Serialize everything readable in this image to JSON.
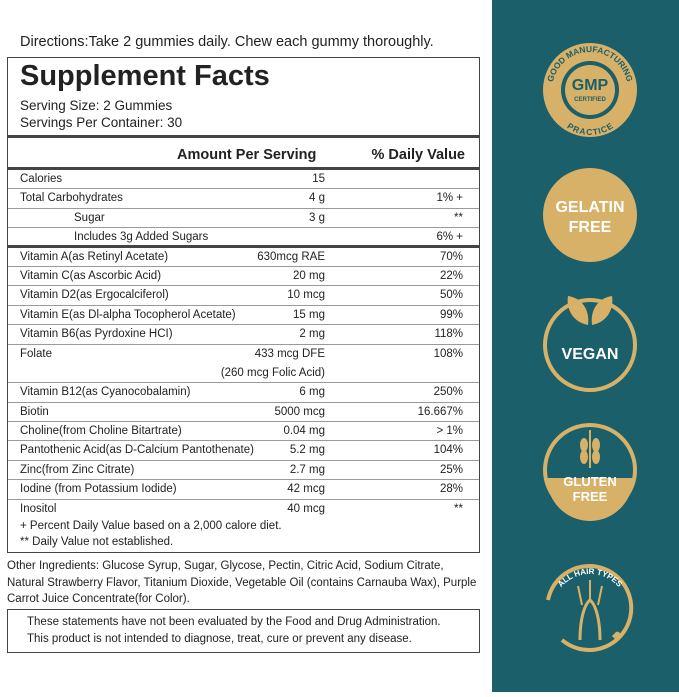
{
  "directions": "Directions:Take 2 gummies daily. Chew each gummy thoroughly.",
  "facts": {
    "title": "Supplement Facts",
    "serving_size": "Serving Size: 2 Gummies",
    "servings_per_container": "Servings Per Container: 30",
    "header_amount": "Amount Per Serving",
    "header_dv": "% Daily Value",
    "rows": [
      {
        "name": "Calories",
        "amount": "15"
      },
      {
        "name": "Total Carbohydrates",
        "amount": "4 g",
        "dv": "1%  +"
      },
      {
        "name": "Sugar",
        "amount": "3 g",
        "dv": "**"
      },
      {
        "name": "Includes 3g Added Sugars",
        "dv": "6% +"
      },
      {
        "name": "Vitamin A(as Retinyl Acetate)",
        "amount": "630mcg RAE",
        "dv": "70%"
      },
      {
        "name": "Vitamin C(as Ascorbic Acid)",
        "amount": "20 mg",
        "dv": "22%"
      },
      {
        "name": "Vitamin D2(as Ergocalciferol)",
        "amount": "10 mcg",
        "dv": "50%"
      },
      {
        "name": "Vitamin E(as Dl-alpha Tocopherol Acetate)",
        "amount": "15 mg",
        "dv": "99%"
      },
      {
        "name": "Vitamin B6(as Pyrdoxine HCI)",
        "amount": "2 mg",
        "dv": "118%"
      },
      {
        "name": "Folate",
        "amount": "433 mcg DFE",
        "dv": "108%",
        "note": "(260 mcg Folic Acid)"
      },
      {
        "name": "Vitamin B12(as Cyanocobalamin)",
        "amount": "6 mg",
        "dv": "250%"
      },
      {
        "name": "Biotin",
        "amount": "5000 mcg",
        "dv": "16.667%"
      },
      {
        "name": "Choline(from Choline Bitartrate)",
        "amount": "0.04 mg",
        "dv": "> 1%"
      },
      {
        "name": "Pantothenic Acid(as D-Calcium Pantothenate)",
        "amount": "5.2 mg",
        "dv": "104%"
      },
      {
        "name": "Zinc(from Zinc Citrate)",
        "amount": "2.7 mg",
        "dv": "25%"
      },
      {
        "name": "Iodine (from Potassium Iodide)",
        "amount": "42 mcg",
        "dv": "28%"
      },
      {
        "name": "Inositol",
        "amount": "40 mcg",
        "dv": "**"
      }
    ],
    "footnotes": [
      "+ Percent Daily Value based on a 2,000 calore diet.",
      "** Daily Value not established."
    ]
  },
  "other_ingredients": "Other Ingredients: Glucose Syrup, Sugar, Glycose, Pectin, Citric Acid, Sodium Citrate, Natural Strawberry Flavor, Titanium Dioxide, Vegetable Oil (contains Carnauba Wax), Purple Carrot Juice Concentrate(for Color).",
  "disclaimer": [
    "These statements have not been evaluated by the Food and Drug Administration.",
    "This product is not intended to diagnose, treat, cure or prevent any disease."
  ],
  "badges": {
    "gmp": {
      "ring": "GOOD MANUFACTURING",
      "ring_bottom": "PRACTICE",
      "label": "GMP",
      "sub": "CERTIFIED"
    },
    "gelatin_free": [
      "GELATIN",
      "FREE"
    ],
    "vegan": "VEGAN",
    "gluten_free": [
      "GLUTEN",
      "FREE"
    ],
    "hair": "ALL HAIR TYPES"
  }
}
